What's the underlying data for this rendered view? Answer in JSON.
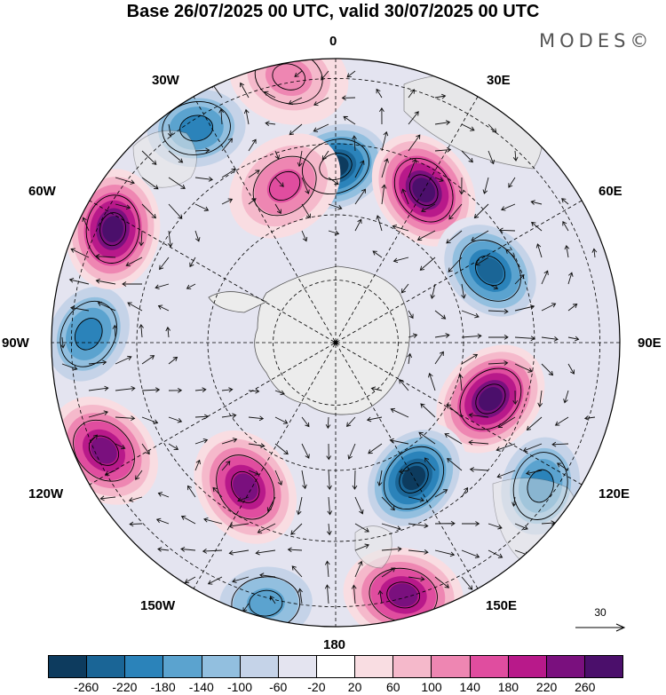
{
  "title": "Base 26/07/2025 00 UTC, valid 30/07/2025 00 UTC",
  "logo": "MODES©",
  "longitude_labels": {
    "lon_0": "0",
    "lon_30e": "30E",
    "lon_60e": "60E",
    "lon_90e": "90E",
    "lon_120e": "120E",
    "lon_150e": "150E",
    "lon_180": "180",
    "lon_150w": "150W",
    "lon_120w": "120W",
    "lon_90w": "90W",
    "lon_60w": "60W",
    "lon_30w": "30W"
  },
  "reference_vector": {
    "label": "30",
    "value": 30
  },
  "colorbar": {
    "colors": [
      "#0d3b5e",
      "#1a6596",
      "#2b83ba",
      "#5ba3cf",
      "#92bfdf",
      "#c5d3e8",
      "#e4e4f0",
      "#ffffff",
      "#f9dde2",
      "#f5b9cb",
      "#ee86b2",
      "#e04d9f",
      "#b8198a",
      "#7a107e",
      "#4b0f6b"
    ],
    "tick_labels": [
      "-260",
      "-220",
      "-180",
      "-140",
      "-100",
      "-60",
      "-20",
      "20",
      "60",
      "100",
      "140",
      "180",
      "220",
      "260"
    ]
  },
  "map_data": {
    "projection": "south-polar-stereographic",
    "land_color": "#ececec",
    "features": [
      {
        "kind": "negative",
        "value": -260,
        "lon": 0,
        "dist": 0.62
      },
      {
        "kind": "positive",
        "value": 260,
        "lon": 30,
        "dist": 0.62
      },
      {
        "kind": "negative",
        "value": -200,
        "lon": 65,
        "dist": 0.6
      },
      {
        "kind": "positive",
        "value": 240,
        "lon": 110,
        "dist": 0.58
      },
      {
        "kind": "negative",
        "value": -240,
        "lon": 150,
        "dist": 0.55
      },
      {
        "kind": "positive",
        "value": 200,
        "lon": 165,
        "dist": 0.92
      },
      {
        "kind": "negative",
        "value": -180,
        "lon": 125,
        "dist": 0.88
      },
      {
        "kind": "positive",
        "value": 220,
        "lon": -148,
        "dist": 0.6
      },
      {
        "kind": "positive",
        "value": 200,
        "lon": -115,
        "dist": 0.9
      },
      {
        "kind": "negative",
        "value": -180,
        "lon": -88,
        "dist": 0.87
      },
      {
        "kind": "positive",
        "value": 240,
        "lon": -63,
        "dist": 0.88
      },
      {
        "kind": "negative",
        "value": -180,
        "lon": -33,
        "dist": 0.9
      },
      {
        "kind": "positive",
        "value": 140,
        "lon": -18,
        "dist": 0.58
      },
      {
        "kind": "positive",
        "value": 100,
        "lon": -10,
        "dist": 0.95
      },
      {
        "kind": "negative",
        "value": -140,
        "lon": -165,
        "dist": 0.95
      }
    ]
  }
}
